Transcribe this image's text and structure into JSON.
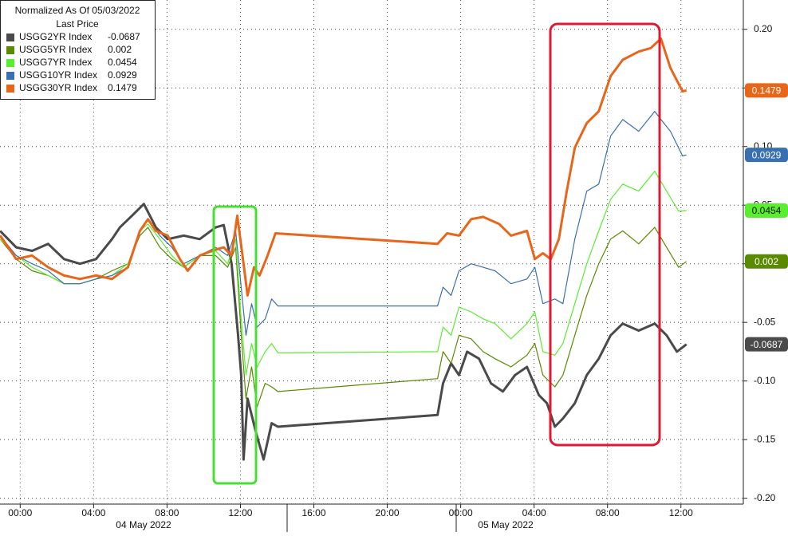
{
  "chart_data": {
    "type": "line",
    "legend_title": "Normalized As Of 05/03/2022",
    "legend_subtitle": "Last Price",
    "x_group_labels": [
      "04 May 2022",
      "05 May 2022"
    ],
    "xlim": [
      -1.1,
      39.4
    ],
    "xticks": [
      {
        "value": 0,
        "label": "00:00"
      },
      {
        "value": 4,
        "label": "04:00"
      },
      {
        "value": 8,
        "label": "08:00"
      },
      {
        "value": 12,
        "label": "12:00"
      },
      {
        "value": 16,
        "label": "16:00"
      },
      {
        "value": 20,
        "label": "20:00"
      },
      {
        "value": 24,
        "label": "00:00"
      },
      {
        "value": 28,
        "label": "04:00"
      },
      {
        "value": 32,
        "label": "08:00"
      },
      {
        "value": 36,
        "label": "12:00"
      }
    ],
    "ylim": [
      -0.205,
      0.225
    ],
    "yticks": [
      {
        "value": -0.2,
        "label": "-0.20"
      },
      {
        "value": -0.15,
        "label": "-0.15"
      },
      {
        "value": -0.1,
        "label": "-0.10"
      },
      {
        "value": -0.05,
        "label": "-0.05"
      },
      {
        "value": 0,
        "label": "0.00"
      },
      {
        "value": 0.05,
        "label": "0.05"
      },
      {
        "value": 0.1,
        "label": "0.10"
      },
      {
        "value": 0.15,
        "label": "0.15"
      },
      {
        "value": 0.2,
        "label": "0.20"
      }
    ],
    "grid": true,
    "series": [
      {
        "name": "USGG2YR Index",
        "color": "#4a4a4a",
        "last_price": -0.0687,
        "x": [
          -1.09,
          -0.22,
          0.65,
          1.52,
          2.39,
          3.26,
          4.13,
          5.0,
          5.43,
          6.09,
          6.74,
          7.39,
          8.04,
          8.91,
          9.78,
          10.65,
          11.09,
          11.52,
          11.87,
          12.04,
          12.17,
          12.39,
          12.83,
          13.26,
          13.7,
          14.04,
          22.74,
          23.04,
          23.48,
          23.91,
          24.35,
          25.0,
          25.65,
          26.3,
          26.96,
          27.61,
          28.26,
          28.7,
          29.13,
          29.57,
          30.22,
          30.87,
          31.52,
          32.17,
          32.83,
          33.7,
          34.57,
          35.22,
          35.78,
          36.3
        ],
        "values": [
          0.028,
          0.014,
          0.011,
          0.017,
          0.004,
          0.0,
          0.004,
          0.021,
          0.031,
          0.041,
          0.051,
          0.031,
          0.021,
          0.024,
          0.021,
          0.031,
          0.033,
          0.0,
          -0.061,
          -0.095,
          -0.167,
          -0.115,
          -0.143,
          -0.167,
          -0.136,
          -0.139,
          -0.129,
          -0.102,
          -0.085,
          -0.095,
          -0.075,
          -0.081,
          -0.102,
          -0.109,
          -0.095,
          -0.088,
          -0.112,
          -0.119,
          -0.139,
          -0.132,
          -0.119,
          -0.095,
          -0.081,
          -0.061,
          -0.051,
          -0.057,
          -0.051,
          -0.061,
          -0.075,
          -0.0687
        ]
      },
      {
        "name": "USGG5YR Index",
        "color": "#5a8a00",
        "last_price": 0.002,
        "x": [
          -1.09,
          -0.22,
          0.65,
          1.52,
          2.39,
          3.26,
          4.13,
          5.0,
          5.87,
          6.52,
          6.96,
          7.61,
          8.26,
          8.91,
          9.78,
          10.65,
          11.3,
          11.74,
          12.04,
          12.3,
          12.61,
          12.91,
          13.35,
          13.7,
          14.04,
          22.74,
          23.04,
          23.48,
          23.91,
          24.57,
          25.22,
          25.87,
          26.74,
          27.61,
          28.04,
          28.48,
          29.13,
          29.57,
          30.22,
          30.87,
          31.52,
          32.17,
          32.83,
          33.7,
          34.57,
          35.22,
          35.87,
          36.3
        ],
        "values": [
          0.021,
          0.004,
          -0.006,
          -0.01,
          -0.017,
          -0.017,
          -0.013,
          -0.006,
          0.0,
          0.024,
          0.031,
          0.014,
          0.004,
          -0.003,
          0.007,
          0.007,
          -0.003,
          0.014,
          -0.061,
          -0.115,
          -0.088,
          -0.122,
          -0.102,
          -0.105,
          -0.109,
          -0.098,
          -0.075,
          -0.085,
          -0.061,
          -0.064,
          -0.075,
          -0.081,
          -0.088,
          -0.078,
          -0.068,
          -0.095,
          -0.105,
          -0.095,
          -0.061,
          -0.027,
          0.0,
          0.021,
          0.028,
          0.017,
          0.031,
          0.014,
          -0.003,
          0.002
        ]
      },
      {
        "name": "USGG7YR Index",
        "color": "#5aee30",
        "last_price": 0.0454,
        "x": [
          -1.09,
          -0.22,
          0.65,
          1.52,
          2.39,
          3.26,
          4.13,
          5.0,
          5.87,
          6.52,
          6.96,
          7.61,
          8.26,
          8.91,
          9.78,
          10.65,
          11.3,
          11.74,
          12.04,
          12.3,
          12.61,
          12.91,
          13.35,
          13.7,
          14.04,
          22.74,
          23.04,
          23.48,
          23.91,
          24.57,
          25.22,
          25.87,
          26.74,
          27.61,
          28.04,
          28.48,
          29.13,
          29.57,
          30.22,
          30.87,
          31.52,
          32.17,
          32.83,
          33.7,
          34.57,
          35.22,
          35.87,
          36.3
        ],
        "values": [
          0.021,
          0.007,
          -0.003,
          -0.01,
          -0.017,
          -0.017,
          -0.013,
          -0.01,
          0.0,
          0.028,
          0.034,
          0.021,
          0.007,
          -0.003,
          0.007,
          0.011,
          0.0,
          0.021,
          -0.047,
          -0.095,
          -0.068,
          -0.088,
          -0.075,
          -0.068,
          -0.076,
          -0.075,
          -0.054,
          -0.061,
          -0.037,
          -0.041,
          -0.047,
          -0.051,
          -0.064,
          -0.051,
          -0.041,
          -0.075,
          -0.078,
          -0.068,
          -0.034,
          0.0,
          0.028,
          0.055,
          0.068,
          0.062,
          0.079,
          0.062,
          0.045,
          0.0454
        ]
      },
      {
        "name": "USGG10YR Index",
        "color": "#3a70b0",
        "last_price": 0.0929,
        "x": [
          -1.09,
          -0.22,
          0.65,
          1.52,
          2.39,
          3.26,
          4.13,
          5.0,
          5.87,
          6.52,
          6.96,
          7.61,
          8.26,
          8.91,
          9.78,
          10.65,
          11.3,
          11.74,
          12.04,
          12.3,
          12.61,
          12.91,
          13.35,
          13.7,
          14.04,
          22.74,
          23.04,
          23.48,
          23.91,
          24.57,
          25.22,
          25.87,
          26.74,
          27.61,
          28.04,
          28.48,
          29.13,
          29.57,
          30.22,
          30.87,
          31.52,
          32.17,
          32.83,
          33.7,
          34.57,
          34.91,
          35.43,
          36.09,
          36.3
        ],
        "values": [
          0.024,
          0.007,
          0.0,
          -0.006,
          -0.017,
          -0.017,
          -0.013,
          -0.01,
          -0.003,
          0.028,
          0.038,
          0.024,
          0.014,
          0.0,
          0.007,
          0.014,
          0.007,
          0.028,
          -0.02,
          -0.061,
          -0.034,
          -0.054,
          -0.047,
          -0.03,
          -0.036,
          -0.036,
          -0.02,
          -0.027,
          -0.006,
          0.0,
          -0.003,
          -0.006,
          -0.017,
          -0.013,
          -0.003,
          -0.034,
          -0.03,
          -0.034,
          0.021,
          0.062,
          0.068,
          0.109,
          0.123,
          0.113,
          0.13,
          0.123,
          0.113,
          0.092,
          0.0929
        ]
      },
      {
        "name": "USGG30YR Index",
        "color": "#e8661a",
        "last_price": 0.1479,
        "x": [
          -1.09,
          -0.65,
          -0.22,
          0.65,
          1.52,
          2.39,
          3.26,
          4.13,
          5.0,
          5.87,
          6.52,
          6.96,
          7.39,
          8.04,
          8.7,
          9.13,
          9.78,
          10.43,
          11.09,
          11.52,
          11.83,
          12.17,
          12.39,
          12.74,
          13.04,
          13.48,
          13.91,
          22.74,
          23.26,
          23.91,
          24.57,
          25.22,
          26.09,
          26.74,
          27.61,
          28.04,
          28.48,
          28.91,
          29.35,
          29.78,
          30.22,
          30.87,
          31.52,
          32.17,
          32.83,
          33.7,
          34.35,
          34.91,
          35.43,
          36.09,
          36.3
        ],
        "values": [
          0.024,
          0.014,
          0.004,
          0.007,
          -0.003,
          -0.01,
          -0.013,
          -0.01,
          -0.013,
          -0.003,
          0.028,
          0.038,
          0.028,
          0.024,
          0.004,
          -0.006,
          0.007,
          0.011,
          0.014,
          0.007,
          0.041,
          0.0,
          -0.027,
          -0.003,
          -0.01,
          0.007,
          0.026,
          0.017,
          0.026,
          0.024,
          0.038,
          0.04,
          0.034,
          0.024,
          0.028,
          0.004,
          0.009,
          0.004,
          0.021,
          0.062,
          0.099,
          0.12,
          0.13,
          0.16,
          0.174,
          0.181,
          0.184,
          0.192,
          0.167,
          0.147,
          0.1479
        ]
      }
    ]
  }
}
